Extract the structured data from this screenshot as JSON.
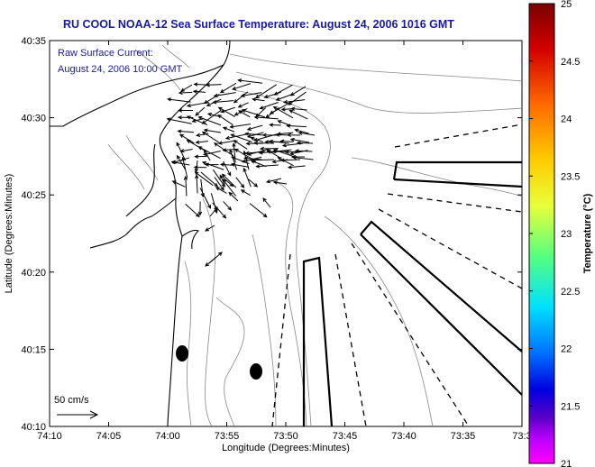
{
  "title": "RU COOL  NOAA-12  Sea Surface Temperature:  August 24, 2006 1016 GMT",
  "annotation": {
    "line1": "Raw Surface Current:",
    "line2": "August 24, 2006 10:00 GMT"
  },
  "axes": {
    "xlabel": "Longitude (Degrees:Minutes)",
    "ylabel": "Latitude (Degrees:Minutes)",
    "xticks": [
      "74:10",
      "74:05",
      "74:00",
      "73:55",
      "73:50",
      "73:45",
      "73:40",
      "73:35",
      "73:3"
    ],
    "yticks": [
      "40:35",
      "40:30",
      "40:25",
      "40:20",
      "40:15",
      "40:10"
    ]
  },
  "colorbar": {
    "label": "Temperature (°C)",
    "ticks": [
      "25",
      "24.5",
      "24",
      "23.5",
      "23",
      "22.5",
      "22",
      "21.5",
      "21"
    ]
  },
  "scale_label": "50 cm/s"
}
